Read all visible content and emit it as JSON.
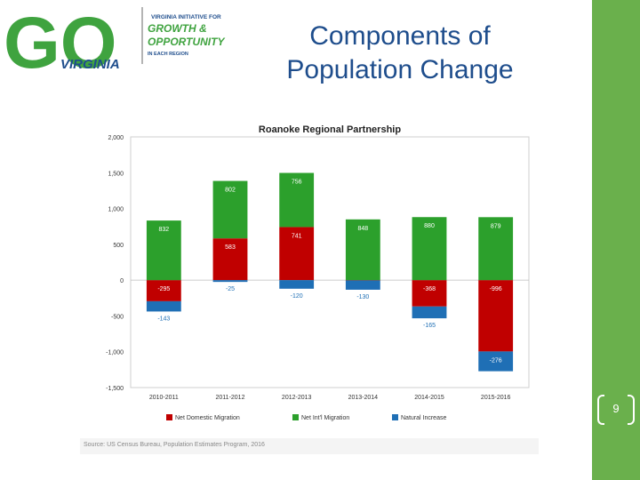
{
  "slide": {
    "title_line1": "Components of",
    "title_line2": "Population Change",
    "page_number": "9"
  },
  "logo": {
    "letters": "GO",
    "state": "VIRGINIA",
    "tag_line1": "VIRGINIA INITIATIVE FOR",
    "tag_line2": "GROWTH &",
    "tag_line3": "OPPORTUNITY",
    "tag_line4": "IN EACH REGION"
  },
  "source_note": "Source: US Census Bureau, Population Estimates Program, 2016",
  "colors": {
    "domestic": "#c00000",
    "international": "#2ca02c",
    "natural": "#1f6fb5",
    "accent": "#6ab04c",
    "title": "#1e4d8c"
  },
  "chart_data": {
    "type": "bar",
    "stacked": true,
    "title": "Roanoke Regional Partnership",
    "ylim": [
      -1500,
      2000
    ],
    "yticks": [
      2000,
      1500,
      1000,
      500,
      0,
      -500,
      -1000,
      -1500
    ],
    "ytick_labels": [
      "2,000",
      "1,500",
      "1,000",
      "500",
      "0",
      "-500",
      "-1,000",
      "-1,500"
    ],
    "categories": [
      "2010-2011",
      "2011-2012",
      "2012-2013",
      "2013-2014",
      "2014-2015",
      "2015-2016"
    ],
    "series": [
      {
        "name": "Net Domestic Migration",
        "color": "#c00000",
        "values": [
          -295,
          583,
          741,
          -4,
          -368,
          -996
        ]
      },
      {
        "name": "Net Int'l Migration",
        "color": "#2ca02c",
        "values": [
          832,
          802,
          756,
          848,
          880,
          879
        ]
      },
      {
        "name": "Natural Increase",
        "color": "#1f6fb5",
        "values": [
          -143,
          -25,
          -120,
          -130,
          -165,
          -276
        ]
      }
    ],
    "legend_position": "bottom",
    "grid": false
  }
}
